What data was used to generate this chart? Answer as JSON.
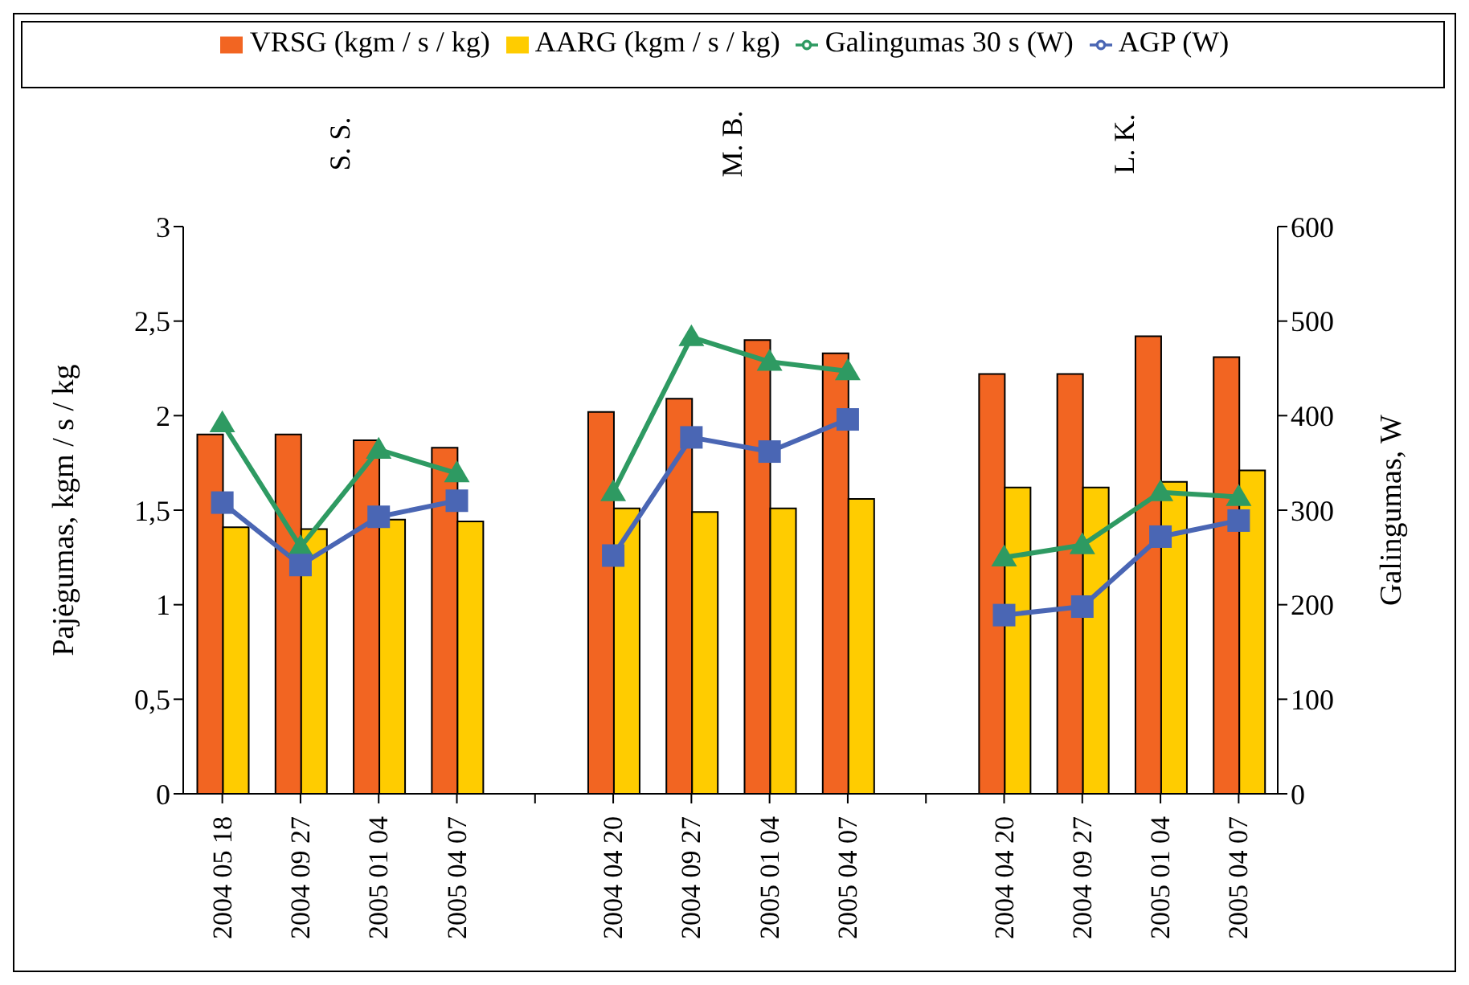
{
  "chart_data": {
    "type": "bar",
    "categories": [
      "2004 05 18",
      "2004 09 27",
      "2005 01 04",
      "2005 04 07",
      null,
      "2004 04 20",
      "2004 09 27",
      "2005 01 04",
      "2005 04 07",
      null,
      "2004 04 20",
      "2004 09 27",
      "2005 01 04",
      "2005 04 07"
    ],
    "series": [
      {
        "name": "VRSG (kgm / s / kg)",
        "color": "#f26522",
        "values": [
          1.9,
          1.9,
          1.87,
          1.83,
          null,
          2.02,
          2.09,
          2.4,
          2.33,
          null,
          2.22,
          2.22,
          2.42,
          2.31
        ]
      },
      {
        "name": "AARG (kgm / s / kg)",
        "color": "#ffcc00",
        "values": [
          1.41,
          1.4,
          1.45,
          1.44,
          null,
          1.51,
          1.49,
          1.51,
          1.56,
          null,
          1.62,
          1.62,
          1.65,
          1.71
        ]
      },
      {
        "name": "Galingumas 30 s (W)",
        "type": "line",
        "axis": "y2",
        "marker": "triangle",
        "color": "#2e9a62",
        "values": [
          392,
          261,
          364,
          339,
          null,
          319,
          483,
          457,
          447,
          null,
          250,
          263,
          319,
          314
        ]
      },
      {
        "name": "AGP (W)",
        "type": "line",
        "axis": "y2",
        "marker": "square",
        "color": "#4a66b4",
        "values": [
          308,
          242,
          293,
          310,
          null,
          252,
          377,
          362,
          396,
          null,
          189,
          198,
          272,
          289
        ]
      }
    ],
    "ylabel": "Pajėgumas, kgm / s / kg",
    "y2label": "Galingumas, W",
    "ylim": [
      0,
      3
    ],
    "yticks": [
      0,
      {
        "value": 0.5,
        "label": "0,5"
      },
      1,
      {
        "value": 1.5,
        "label": "1,5"
      },
      2,
      {
        "value": 2.5,
        "label": "2,5"
      },
      3
    ],
    "y2lim": [
      0,
      600
    ],
    "y2ticks": [
      0,
      100,
      200,
      300,
      400,
      500,
      600
    ],
    "annotations": [
      "S. S.",
      "M. B.",
      "L. K."
    ],
    "legend": "top",
    "grid": false
  }
}
